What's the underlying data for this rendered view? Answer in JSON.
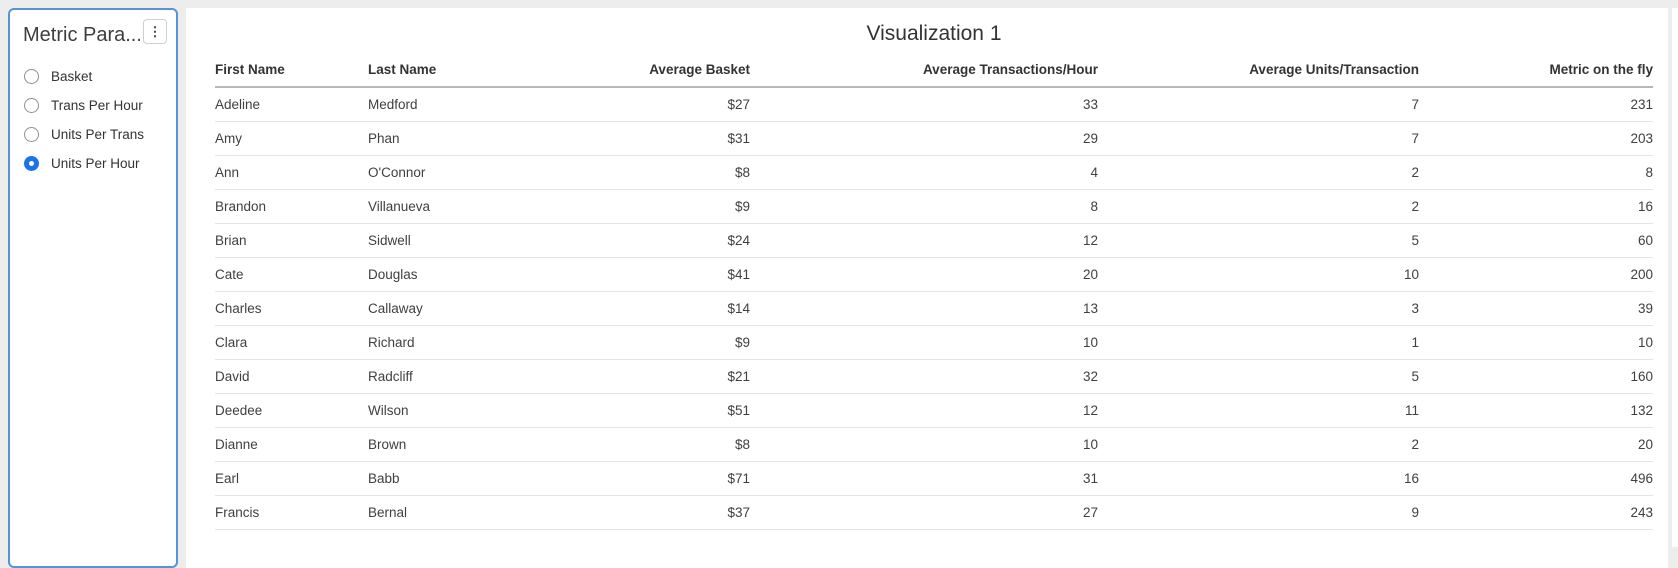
{
  "parameter_panel": {
    "title": "Metric Para...",
    "menu_icon": "kebab-vertical-icon",
    "accent_color": "#1a73e8",
    "border_color": "#5794d7",
    "options": [
      {
        "label": "Basket",
        "selected": false
      },
      {
        "label": "Trans Per Hour",
        "selected": false
      },
      {
        "label": "Units Per Trans",
        "selected": false
      },
      {
        "label": "Units Per Hour",
        "selected": true
      }
    ]
  },
  "main": {
    "title": "Visualization 1",
    "table": {
      "columns": [
        {
          "label": "First Name",
          "align": "left"
        },
        {
          "label": "Last Name",
          "align": "left"
        },
        {
          "label": "Average Basket",
          "align": "right"
        },
        {
          "label": "Average Transactions/Hour",
          "align": "right"
        },
        {
          "label": "Average Units/Transaction",
          "align": "right"
        },
        {
          "label": "Metric on the fly",
          "align": "right"
        }
      ],
      "rows": [
        {
          "cells": [
            "Adeline",
            "Medford",
            "$27",
            "33",
            "7",
            "231"
          ]
        },
        {
          "cells": [
            "Amy",
            "Phan",
            "$31",
            "29",
            "7",
            "203"
          ]
        },
        {
          "cells": [
            "Ann",
            "O'Connor",
            "$8",
            "4",
            "2",
            "8"
          ]
        },
        {
          "cells": [
            "Brandon",
            "Villanueva",
            "$9",
            "8",
            "2",
            "16"
          ]
        },
        {
          "cells": [
            "Brian",
            "Sidwell",
            "$24",
            "12",
            "5",
            "60"
          ]
        },
        {
          "cells": [
            "Cate",
            "Douglas",
            "$41",
            "20",
            "10",
            "200"
          ]
        },
        {
          "cells": [
            "Charles",
            "Callaway",
            "$14",
            "13",
            "3",
            "39"
          ]
        },
        {
          "cells": [
            "Clara",
            "Richard",
            "$9",
            "10",
            "1",
            "10"
          ]
        },
        {
          "cells": [
            "David",
            "Radcliff",
            "$21",
            "32",
            "5",
            "160"
          ]
        },
        {
          "cells": [
            "Deedee",
            "Wilson",
            "$51",
            "12",
            "11",
            "132"
          ]
        },
        {
          "cells": [
            "Dianne",
            "Brown",
            "$8",
            "10",
            "2",
            "20"
          ]
        },
        {
          "cells": [
            "Earl",
            "Babb",
            "$71",
            "31",
            "16",
            "496"
          ]
        },
        {
          "cells": [
            "Francis",
            "Bernal",
            "$37",
            "27",
            "9",
            "243"
          ]
        }
      ]
    }
  },
  "chart_data": {
    "type": "table",
    "title": "Visualization 1",
    "columns": [
      "First Name",
      "Last Name",
      "Average Basket",
      "Average Transactions/Hour",
      "Average Units/Transaction",
      "Metric on the fly"
    ],
    "currency_columns": [
      "Average Basket"
    ],
    "rows": [
      [
        "Adeline",
        "Medford",
        27,
        33,
        7,
        231
      ],
      [
        "Amy",
        "Phan",
        31,
        29,
        7,
        203
      ],
      [
        "Ann",
        "O'Connor",
        8,
        4,
        2,
        8
      ],
      [
        "Brandon",
        "Villanueva",
        9,
        8,
        2,
        16
      ],
      [
        "Brian",
        "Sidwell",
        24,
        12,
        5,
        60
      ],
      [
        "Cate",
        "Douglas",
        41,
        20,
        10,
        200
      ],
      [
        "Charles",
        "Callaway",
        14,
        13,
        3,
        39
      ],
      [
        "Clara",
        "Richard",
        9,
        10,
        1,
        10
      ],
      [
        "David",
        "Radcliff",
        21,
        32,
        5,
        160
      ],
      [
        "Deedee",
        "Wilson",
        51,
        12,
        11,
        132
      ],
      [
        "Dianne",
        "Brown",
        8,
        10,
        2,
        20
      ],
      [
        "Earl",
        "Babb",
        71,
        31,
        16,
        496
      ],
      [
        "Francis",
        "Bernal",
        37,
        27,
        9,
        243
      ]
    ]
  }
}
